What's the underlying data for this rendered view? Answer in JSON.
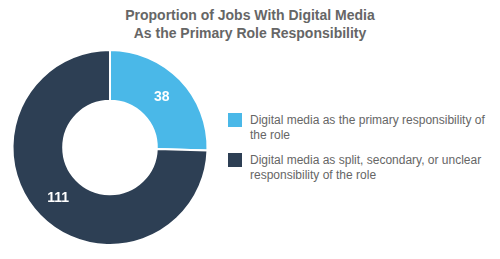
{
  "chart_data": {
    "type": "pie",
    "title": [
      "Proportion of Jobs With Digital Media",
      "As the Primary Role Responsibility"
    ],
    "categories": [
      "Digital media as the primary responsibility of the role",
      "Digital media as split, secondary, or unclear responsibility of the role"
    ],
    "values": [
      38,
      111
    ],
    "colors": [
      "#4ab8e8",
      "#2d3f54"
    ],
    "data_labels": true,
    "legend": "right"
  }
}
